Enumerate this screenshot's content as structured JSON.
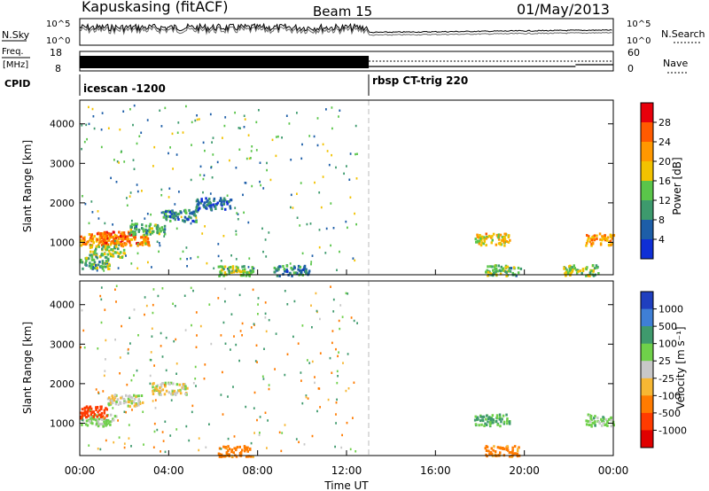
{
  "header": {
    "station": "Kapuskasing (fitACF)",
    "beam": "Beam 15",
    "date": "01/May/2013"
  },
  "panels": {
    "nsky": {
      "label": "N.Sky",
      "right_label": "N.Search",
      "ticks_left": [
        "10^5",
        "10^0"
      ],
      "ticks_right": [
        "10^5",
        "10^0"
      ]
    },
    "freq": {
      "label_top": "Freq.",
      "label_bottom": "[MHz]",
      "ticks_left": [
        "18",
        "8"
      ],
      "ticks_right": [
        "60",
        "0"
      ],
      "right_label": "Nave"
    },
    "cpid": {
      "label": "CPID",
      "segments": [
        {
          "name": "icescan -1200"
        },
        {
          "name": "rbsp CT-trig 220"
        }
      ]
    }
  },
  "axes": {
    "x_ticks": [
      "00:00",
      "04:00",
      "08:00",
      "12:00",
      "16:00",
      "20:00",
      "00:00"
    ],
    "x_label": "Time UT",
    "y_label": "Slant Range [km]",
    "y_ticks": [
      "1000",
      "2000",
      "3000",
      "4000"
    ]
  },
  "power_colorbar": {
    "label": "Power [dB]",
    "ticks": [
      "28",
      "24",
      "20",
      "16",
      "12",
      "8",
      "4"
    ],
    "colors": [
      "#e8000b",
      "#ff5a00",
      "#ff9800",
      "#f2c200",
      "#5ac54a",
      "#3d9a6d",
      "#1d5ea8",
      "#0f2fd6"
    ]
  },
  "velocity_colorbar": {
    "label": "Velocity [m s⁻¹]",
    "ticks": [
      "1000",
      "500",
      "100",
      "25",
      "-25",
      "-100",
      "-500",
      "-1000"
    ],
    "colors": [
      "#1f3fbf",
      "#3f7fd6",
      "#3f9a6d",
      "#6fd04a",
      "#c8c8c8",
      "#f7b733",
      "#ff7b00",
      "#ff3b00",
      "#e00000"
    ]
  },
  "chart_data": [
    {
      "type": "heatmap",
      "name": "power",
      "x_unit": "hours UT",
      "y_unit": "km",
      "xlim": [
        0,
        24
      ],
      "ylim": [
        180,
        4600
      ],
      "cells": [
        {
          "x": 0.8,
          "y": 1100,
          "v": 20
        },
        {
          "x": 1.5,
          "y": 1150,
          "v": 24
        },
        {
          "x": 2.3,
          "y": 1100,
          "v": 22
        },
        {
          "x": 1.2,
          "y": 800,
          "v": 14
        },
        {
          "x": 3.0,
          "y": 1350,
          "v": 12
        },
        {
          "x": 4.5,
          "y": 1700,
          "v": 8
        },
        {
          "x": 6.0,
          "y": 2000,
          "v": 6
        },
        {
          "x": 0.5,
          "y": 500,
          "v": 12
        },
        {
          "x": 7.0,
          "y": 280,
          "v": 14
        },
        {
          "x": 9.5,
          "y": 300,
          "v": 8
        },
        {
          "x": 18.5,
          "y": 1100,
          "v": 18
        },
        {
          "x": 19.0,
          "y": 300,
          "v": 12
        },
        {
          "x": 22.5,
          "y": 300,
          "v": 14
        },
        {
          "x": 23.5,
          "y": 1100,
          "v": 20
        }
      ]
    },
    {
      "type": "heatmap",
      "name": "velocity",
      "x_unit": "hours UT",
      "y_unit": "km",
      "xlim": [
        0,
        24
      ],
      "ylim": [
        180,
        4600
      ],
      "cells": [
        {
          "x": 0.8,
          "y": 1100,
          "v": 50
        },
        {
          "x": 0.4,
          "y": 1300,
          "v": -600
        },
        {
          "x": 2.0,
          "y": 1600,
          "v": 0
        },
        {
          "x": 4.0,
          "y": 1900,
          "v": 0
        },
        {
          "x": 7.0,
          "y": 300,
          "v": -150
        },
        {
          "x": 18.5,
          "y": 1100,
          "v": 120
        },
        {
          "x": 19.0,
          "y": 300,
          "v": -150
        },
        {
          "x": 23.5,
          "y": 1100,
          "v": 60
        }
      ]
    }
  ]
}
